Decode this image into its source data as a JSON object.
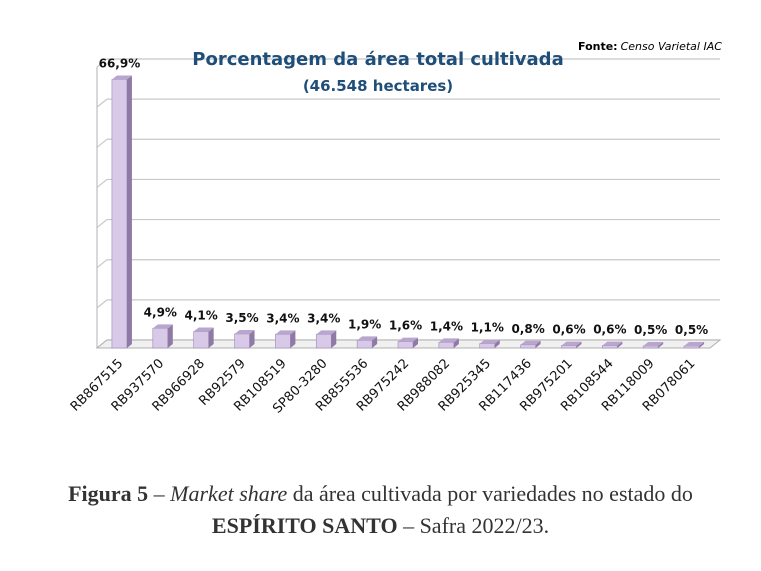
{
  "chart_data": {
    "type": "bar",
    "title": "Porcentagem da área total cultivada",
    "subtitle": "(46.548 hectares)",
    "source_label": "Fonte:",
    "source_text": "Censo Varietal IAC",
    "categories": [
      "RB867515",
      "RB937570",
      "RB966928",
      "RB92579",
      "RB108519",
      "SP80-3280",
      "RB855536",
      "RB975242",
      "RB988082",
      "RB925345",
      "RB117436",
      "RB975201",
      "RB108544",
      "RB118009",
      "RB078061"
    ],
    "values": [
      66.9,
      4.9,
      4.1,
      3.5,
      3.4,
      3.4,
      1.9,
      1.6,
      1.4,
      1.1,
      0.8,
      0.6,
      0.6,
      0.5,
      0.5
    ],
    "data_labels": [
      "66,9%",
      "4,9%",
      "4,1%",
      "3,5%",
      "3,4%",
      "3,4%",
      "1,9%",
      "1,6%",
      "1,4%",
      "1,1%",
      "0,8%",
      "0,6%",
      "0,6%",
      "0,5%",
      "0,5%"
    ],
    "ylim": [
      0,
      70
    ],
    "grid": true,
    "bar_color": "#d9c9e8",
    "bar_side_color": "#8f7aa6",
    "bar_top_color": "#b9a6cf"
  },
  "caption": {
    "figure_label": "Figura 5",
    "dash": " – ",
    "italic_text": "Market share",
    "rest_line1": " da área cultivada por variedades no estado do",
    "state": "ESPÍRITO SANTO",
    "rest_line2": " – Safra 2022/23."
  }
}
